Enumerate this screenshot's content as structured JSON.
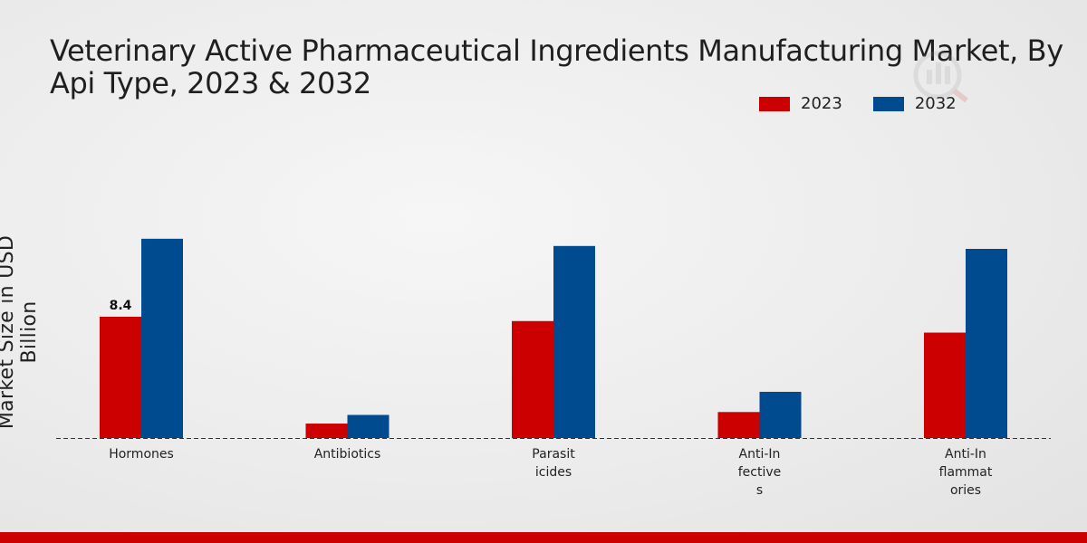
{
  "chart_data": {
    "type": "bar",
    "title": "Veterinary Active Pharmaceutical Ingredients Manufacturing Market, By Api Type, 2023 & 2032",
    "ylabel": "Market Size in USD Billion",
    "xlabel": "",
    "categories": [
      "Hormones",
      "Antibiotics",
      "Parasiticides",
      "Anti-Infectives",
      "Anti-Inflammatories"
    ],
    "category_tick_lines": [
      [
        "Hormones"
      ],
      [
        "Antibiotics"
      ],
      [
        "Parasit",
        "icides"
      ],
      [
        "Anti-In",
        "fective",
        "s"
      ],
      [
        "Anti-In",
        "flammat",
        "ories"
      ]
    ],
    "series": [
      {
        "name": "2023",
        "color": "#cc0000",
        "values": [
          8.4,
          1.0,
          8.1,
          1.8,
          7.3
        ]
      },
      {
        "name": "2032",
        "color": "#004a8f",
        "values": [
          13.8,
          1.6,
          13.3,
          3.2,
          13.1
        ]
      }
    ],
    "data_labels": [
      {
        "series": 0,
        "index": 0,
        "text": "8.4"
      }
    ],
    "ylim": [
      0,
      22
    ],
    "grid": false,
    "legend_position": "top-right"
  }
}
